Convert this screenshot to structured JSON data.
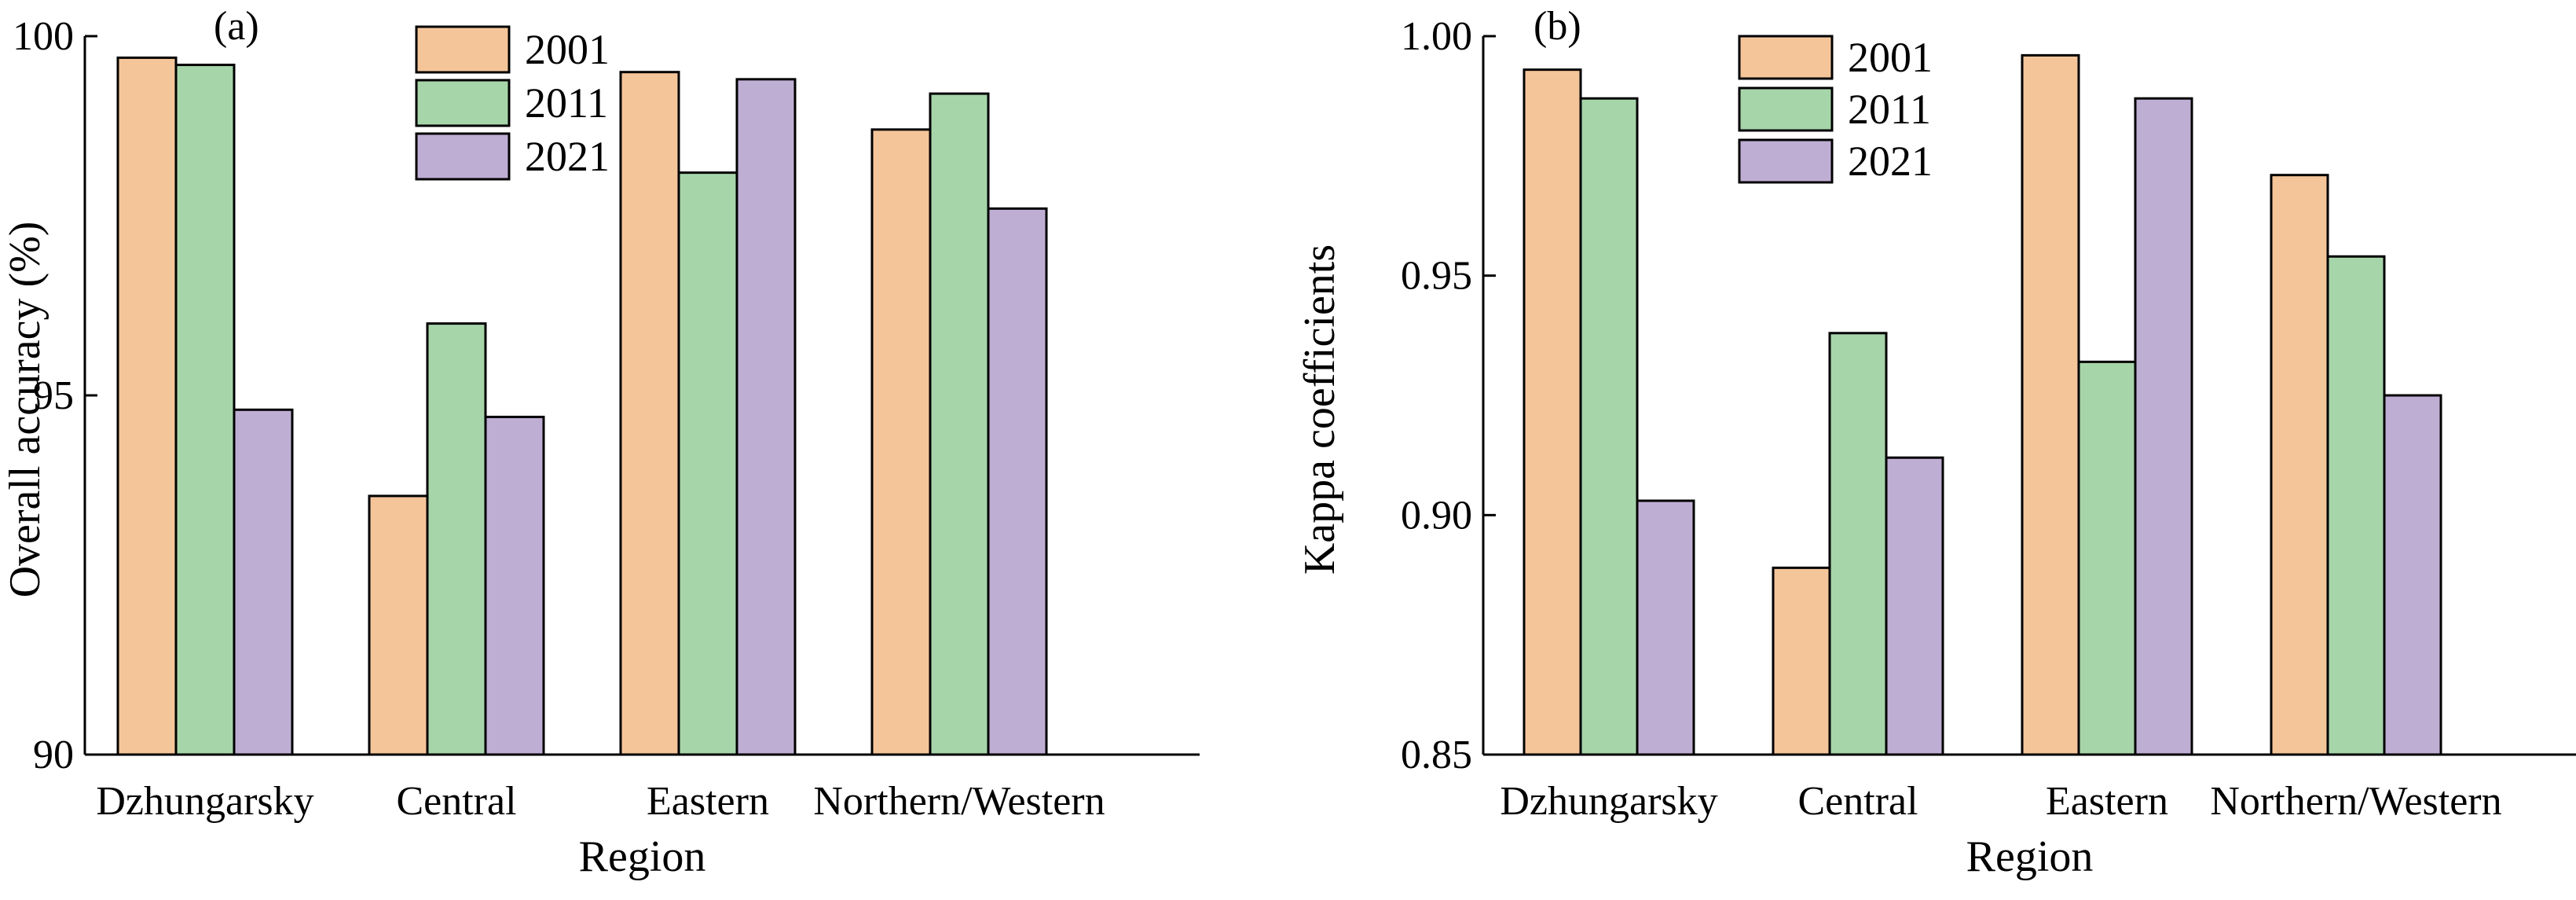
{
  "colors": {
    "2001": "#F5C59A",
    "2011": "#A6D5AA",
    "2021": "#BFAED3",
    "stroke": "#000000"
  },
  "chart_data": [
    {
      "type": "bar",
      "panel_label": "(a)",
      "categories": [
        "Dzhungarsky",
        "Central",
        "Eastern",
        "Northern/Western"
      ],
      "series": [
        {
          "name": "2001",
          "values": [
            99.7,
            93.6,
            99.5,
            98.7
          ]
        },
        {
          "name": "2011",
          "values": [
            99.6,
            96.0,
            98.1,
            99.2
          ]
        },
        {
          "name": "2021",
          "values": [
            94.8,
            94.7,
            99.4,
            97.6
          ]
        }
      ],
      "xlabel": "Region",
      "ylabel": "Overall accuracy (%)",
      "ylim": [
        90,
        100
      ],
      "yticks": [
        90,
        95,
        100
      ],
      "ytick_labels": [
        "90",
        "95",
        "100"
      ],
      "legend": "top-center",
      "grid": false
    },
    {
      "type": "bar",
      "panel_label": "(b)",
      "categories": [
        "Dzhungarsky",
        "Central",
        "Eastern",
        "Northern/Western"
      ],
      "series": [
        {
          "name": "2001",
          "values": [
            0.993,
            0.889,
            0.996,
            0.971
          ]
        },
        {
          "name": "2011",
          "values": [
            0.987,
            0.938,
            0.932,
            0.954
          ]
        },
        {
          "name": "2021",
          "values": [
            0.903,
            0.912,
            0.987,
            0.925
          ]
        }
      ],
      "xlabel": "Region",
      "ylabel": "Kappa coefficients",
      "ylim": [
        0.85,
        1.0
      ],
      "yticks": [
        0.85,
        0.9,
        0.95,
        1.0
      ],
      "ytick_labels": [
        "0.85",
        "0.90",
        "0.95",
        "1.00"
      ],
      "legend": "top-center",
      "grid": false
    }
  ]
}
